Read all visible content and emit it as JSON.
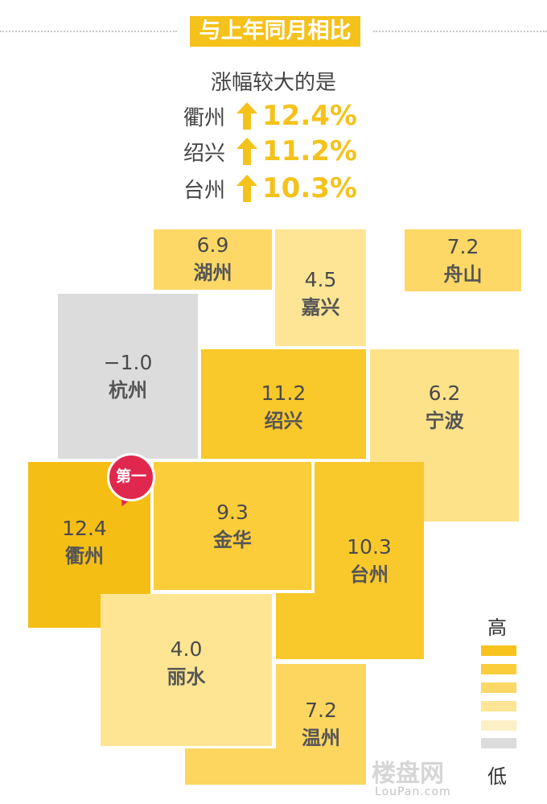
{
  "title": "与上年同月相比",
  "subtitle": "涨幅较大的是",
  "top_rises": [
    {
      "city": "衢州",
      "pct": "12.4%"
    },
    {
      "city": "绍兴",
      "pct": "11.2%"
    },
    {
      "city": "台州",
      "pct": "10.3%"
    }
  ],
  "regions": {
    "huzhou": {
      "name": "湖州",
      "value": "6.9"
    },
    "jiaxing": {
      "name": "嘉兴",
      "value": "4.5"
    },
    "zhoushan": {
      "name": "舟山",
      "value": "7.2"
    },
    "hangzhou": {
      "name": "杭州",
      "value": "−1.0"
    },
    "shaoxing": {
      "name": "绍兴",
      "value": "11.2"
    },
    "ningbo": {
      "name": "宁波",
      "value": "6.2"
    },
    "quzhou": {
      "name": "衢州",
      "value": "12.4"
    },
    "jinhua": {
      "name": "金华",
      "value": "9.3"
    },
    "taizhou": {
      "name": "台州",
      "value": "10.3"
    },
    "lishui": {
      "name": "丽水",
      "value": "4.0"
    },
    "wenzhou": {
      "name": "温州",
      "value": "7.2"
    }
  },
  "badge": "第一",
  "legend": {
    "high": "高",
    "low": "低",
    "colors": [
      "#f7c31c",
      "#fbcd3a",
      "#fdd867",
      "#fee595",
      "#fef0c6",
      "#dcdcdc"
    ]
  },
  "watermark": {
    "cn": "楼盘网",
    "en": "LouPan.com"
  }
}
